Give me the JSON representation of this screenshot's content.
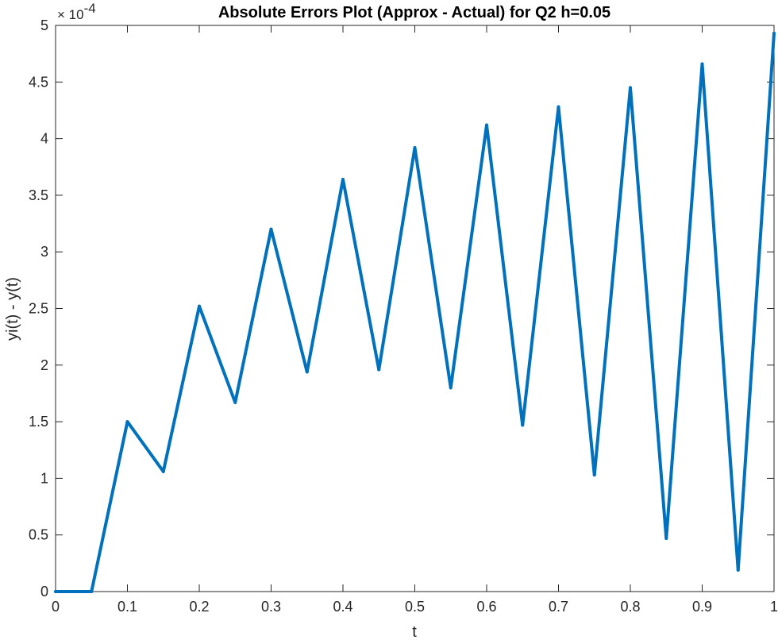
{
  "chart_data": {
    "type": "line",
    "title": "Absolute Errors Plot (Approx - Actual) for Q2 h=0.05",
    "xlabel": "t",
    "ylabel": "yi(t) - y(t)",
    "xlim": [
      0,
      1
    ],
    "ylim": [
      0,
      5
    ],
    "y_exponent_label": "× 10",
    "y_exponent_power": "-4",
    "xticks": [
      "0",
      "0.1",
      "0.2",
      "0.3",
      "0.4",
      "0.5",
      "0.6",
      "0.7",
      "0.8",
      "0.9",
      "1"
    ],
    "yticks": [
      "0",
      "0.5",
      "1",
      "1.5",
      "2",
      "2.5",
      "3",
      "3.5",
      "4",
      "4.5",
      "5"
    ],
    "grid": false,
    "series_color": "#0072BD",
    "x": [
      0,
      0.05,
      0.1,
      0.15,
      0.2,
      0.25,
      0.3,
      0.35,
      0.4,
      0.45,
      0.5,
      0.55,
      0.6,
      0.65,
      0.7,
      0.75,
      0.8,
      0.85,
      0.9,
      0.95,
      1
    ],
    "y": [
      0,
      0,
      1.5,
      1.06,
      2.52,
      1.67,
      3.2,
      1.94,
      3.64,
      1.96,
      3.92,
      1.8,
      4.12,
      1.47,
      4.28,
      1.03,
      4.45,
      0.47,
      4.66,
      0.19,
      4.93
    ]
  }
}
